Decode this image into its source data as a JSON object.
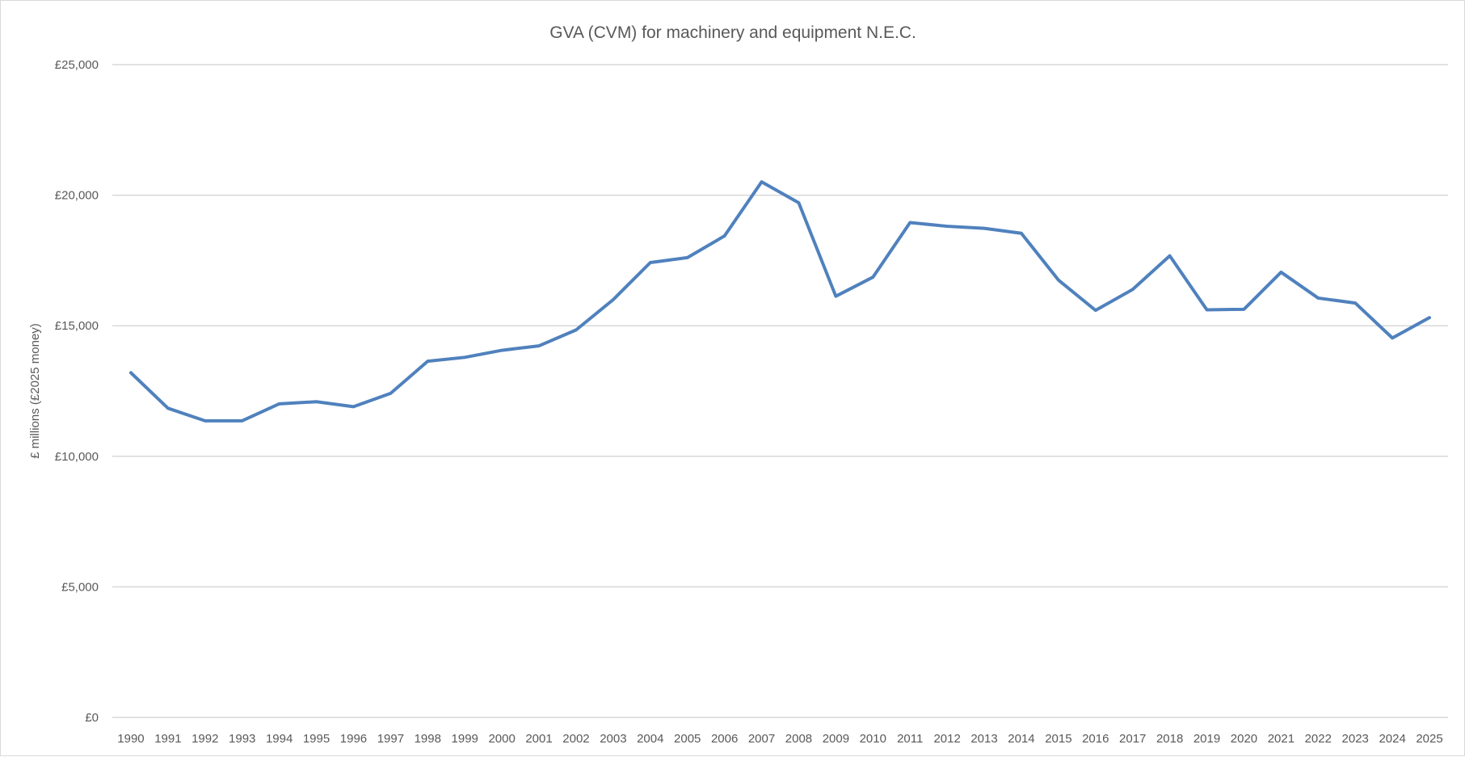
{
  "chart_data": {
    "type": "line",
    "title": "GVA (CVM) for machinery and equipment N.E.C.",
    "xlabel": "",
    "ylabel": "£ millions (£2025 money)",
    "ylim": [
      0,
      25000
    ],
    "yticks": [
      0,
      5000,
      10000,
      15000,
      20000,
      25000
    ],
    "ytick_labels": [
      "£0",
      "£5,000",
      "£10,000",
      "£15,000",
      "£20,000",
      "£25,000"
    ],
    "grid": true,
    "legend": "none",
    "line_color": "#4f81bd",
    "grid_color": "#d9d9d9",
    "categories": [
      "1990",
      "1991",
      "1992",
      "1993",
      "1994",
      "1995",
      "1996",
      "1997",
      "1998",
      "1999",
      "2000",
      "2001",
      "2002",
      "2003",
      "2004",
      "2005",
      "2006",
      "2007",
      "2008",
      "2009",
      "2010",
      "2011",
      "2012",
      "2013",
      "2014",
      "2015",
      "2016",
      "2017",
      "2018",
      "2019",
      "2020",
      "2021",
      "2022",
      "2023",
      "2024",
      "2025"
    ],
    "series": [
      {
        "values": [
          13200,
          11840,
          11360,
          11360,
          12010,
          12090,
          11900,
          12410,
          13640,
          13790,
          14060,
          14230,
          14840,
          16000,
          17420,
          17610,
          18440,
          20510,
          19710,
          16130,
          16860,
          18950,
          18810,
          18730,
          18540,
          16750,
          15590,
          16390,
          17680,
          15610,
          15630,
          17050,
          16060,
          15870,
          14530,
          15310
        ]
      }
    ]
  }
}
